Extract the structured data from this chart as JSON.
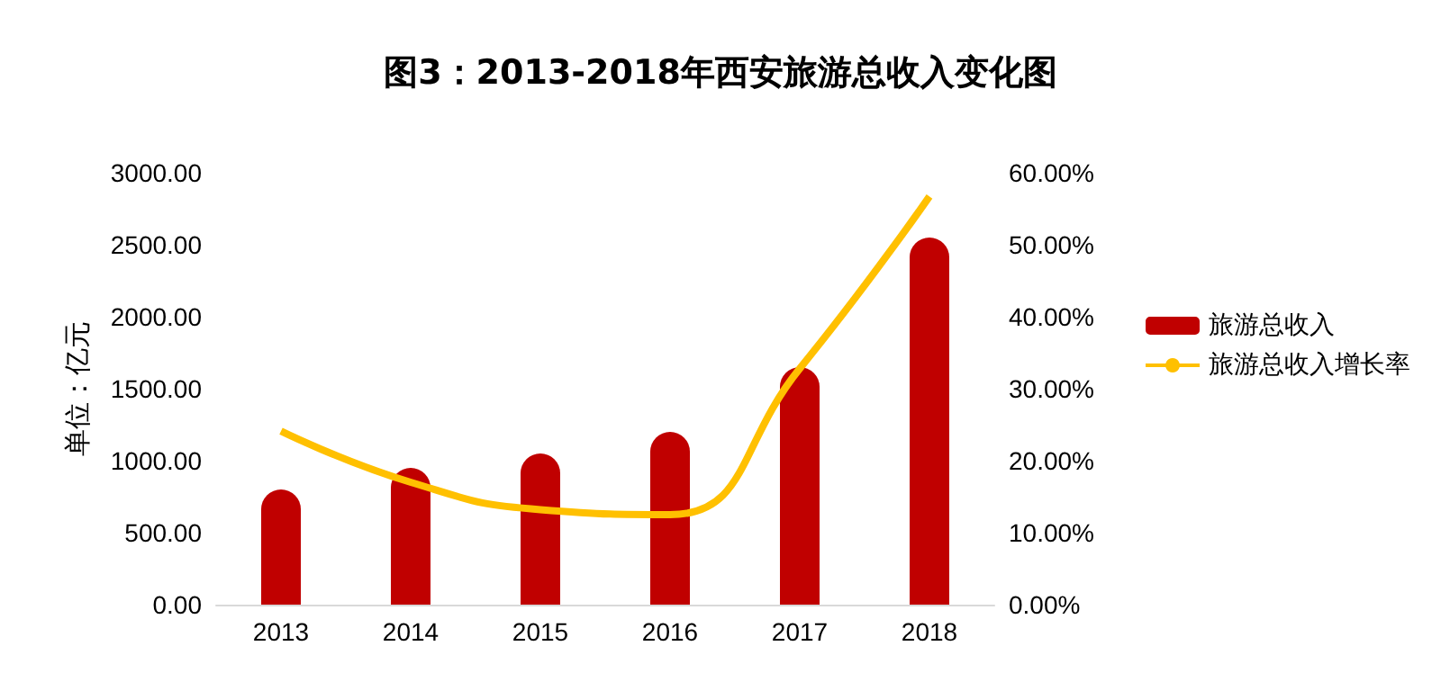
{
  "chart_data": {
    "type": "bar",
    "title": "图3：2013-2018年西安旅游总收入变化图",
    "ylabel": "单位：亿元",
    "categories": [
      "2013",
      "2014",
      "2015",
      "2016",
      "2017",
      "2018"
    ],
    "series": [
      {
        "name": "旅游总收入",
        "color": "#c00000",
        "values": [
          800,
          950,
          1050,
          1200,
          1650,
          2550
        ]
      },
      {
        "name": "旅游总收入增长率",
        "type": "line",
        "axis": "y2",
        "color": "#ffc000",
        "values": [
          24.1,
          17.0,
          13.2,
          12.5,
          32.8,
          56.7
        ]
      }
    ],
    "ylim": [
      0,
      3000
    ],
    "yticks": [
      {
        "value": 0,
        "label": "0.00"
      },
      {
        "value": 500,
        "label": "500.00"
      },
      {
        "value": 1000,
        "label": "1000.00"
      },
      {
        "value": 1500,
        "label": "1500.00"
      },
      {
        "value": 2000,
        "label": "2000.00"
      },
      {
        "value": 2500,
        "label": "2500.00"
      },
      {
        "value": 3000,
        "label": "3000.00"
      }
    ],
    "y2lim": [
      0,
      60
    ],
    "y2ticks": [
      {
        "value": 0,
        "label": "0.00%"
      },
      {
        "value": 10,
        "label": "10.00%"
      },
      {
        "value": 20,
        "label": "20.00%"
      },
      {
        "value": 30,
        "label": "30.00%"
      },
      {
        "value": 40,
        "label": "40.00%"
      },
      {
        "value": 50,
        "label": "50.00%"
      },
      {
        "value": 60,
        "label": "60.00%"
      }
    ],
    "grid": false,
    "legend": "right",
    "marker": "none"
  }
}
